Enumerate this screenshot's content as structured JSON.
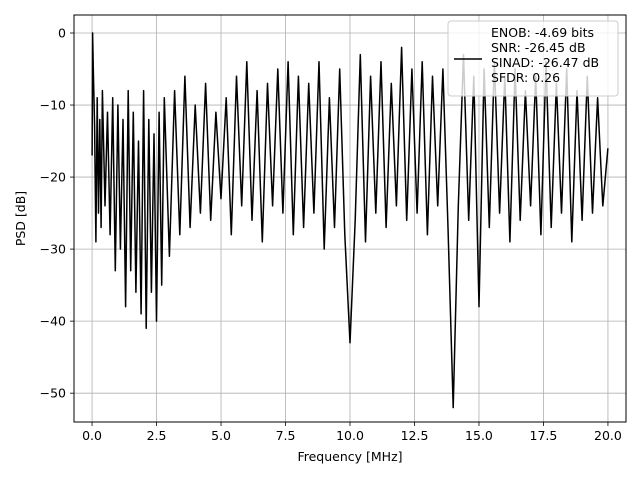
{
  "chart_data": {
    "type": "line",
    "title": "",
    "xlabel": "Frequency [MHz]",
    "ylabel": "PSD [dB]",
    "xlim": [
      -0.7,
      20.7
    ],
    "ylim": [
      -54,
      2.5
    ],
    "grid": true,
    "x_ticks": [
      "0.0",
      "2.5",
      "5.0",
      "7.5",
      "10.0",
      "12.5",
      "15.0",
      "17.5",
      "20.0"
    ],
    "x_tick_values": [
      0,
      2.5,
      5,
      7.5,
      10,
      12.5,
      15,
      17.5,
      20
    ],
    "y_ticks": [
      "0",
      "−10",
      "−20",
      "−30",
      "−40",
      "−50"
    ],
    "y_tick_values": [
      0,
      -10,
      -20,
      -30,
      -40,
      -50
    ],
    "legend_position": "upper right",
    "legend": [
      "ENOB: -4.69 bits",
      "SNR: -26.45 dB",
      "SINAD: -26.47 dB",
      "SFDR: 0.26"
    ],
    "series": [
      {
        "color": "#000000",
        "x": [
          0.0,
          0.02,
          0.05,
          0.1,
          0.15,
          0.2,
          0.25,
          0.3,
          0.35,
          0.4,
          0.5,
          0.6,
          0.7,
          0.8,
          0.9,
          1.0,
          1.1,
          1.2,
          1.3,
          1.4,
          1.5,
          1.6,
          1.7,
          1.8,
          1.9,
          2.0,
          2.1,
          2.2,
          2.3,
          2.4,
          2.5,
          2.6,
          2.7,
          2.8,
          3.0,
          3.2,
          3.4,
          3.6,
          3.8,
          4.0,
          4.2,
          4.4,
          4.6,
          4.8,
          5.0,
          5.2,
          5.4,
          5.6,
          5.8,
          6.0,
          6.2,
          6.4,
          6.6,
          6.8,
          7.0,
          7.2,
          7.4,
          7.6,
          7.8,
          8.0,
          8.2,
          8.4,
          8.6,
          8.8,
          9.0,
          9.2,
          9.4,
          9.6,
          9.8,
          10.0,
          10.2,
          10.4,
          10.6,
          10.8,
          11.0,
          11.2,
          11.4,
          11.6,
          11.8,
          12.0,
          12.2,
          12.4,
          12.6,
          12.8,
          13.0,
          13.2,
          13.4,
          13.6,
          13.8,
          14.0,
          14.2,
          14.4,
          14.6,
          14.8,
          15.0,
          15.2,
          15.4,
          15.6,
          15.8,
          16.0,
          16.2,
          16.4,
          16.6,
          16.8,
          17.0,
          17.2,
          17.4,
          17.6,
          17.8,
          18.0,
          18.2,
          18.4,
          18.6,
          18.8,
          19.0,
          19.2,
          19.4,
          19.6,
          19.8,
          20.0
        ],
        "y": [
          -17,
          0.0,
          -5,
          -13,
          -29,
          -9,
          -25,
          -12,
          -27,
          -8,
          -24,
          -11,
          -28,
          -9,
          -33,
          -10,
          -30,
          -12,
          -38,
          -8,
          -33,
          -11,
          -36,
          -15,
          -39,
          -8,
          -41,
          -12,
          -36,
          -14,
          -40,
          -11,
          -35,
          -9,
          -31,
          -8,
          -28,
          -6,
          -27,
          -10,
          -25,
          -7,
          -26,
          -11,
          -23,
          -9,
          -28,
          -6,
          -24,
          -4,
          -26,
          -8,
          -29,
          -7,
          -24,
          -5,
          -25,
          -4,
          -28,
          -6,
          -27,
          -7,
          -25,
          -4,
          -30,
          -9,
          -27,
          -5,
          -28,
          -43,
          -26,
          -3,
          -29,
          -6,
          -25,
          -4,
          -27,
          -7,
          -24,
          -2,
          -26,
          -5,
          -25,
          -4,
          -28,
          -6,
          -24,
          -5,
          -27,
          -52,
          -24,
          -3,
          -26,
          -6,
          -38,
          -5,
          -27,
          -4,
          -25,
          -6,
          -29,
          -5,
          -26,
          -8,
          -24,
          -6,
          -28,
          -4,
          -27,
          -7,
          -25,
          -5,
          -29,
          -8,
          -26,
          -6,
          -25,
          -9,
          -24,
          -16
        ]
      }
    ]
  }
}
